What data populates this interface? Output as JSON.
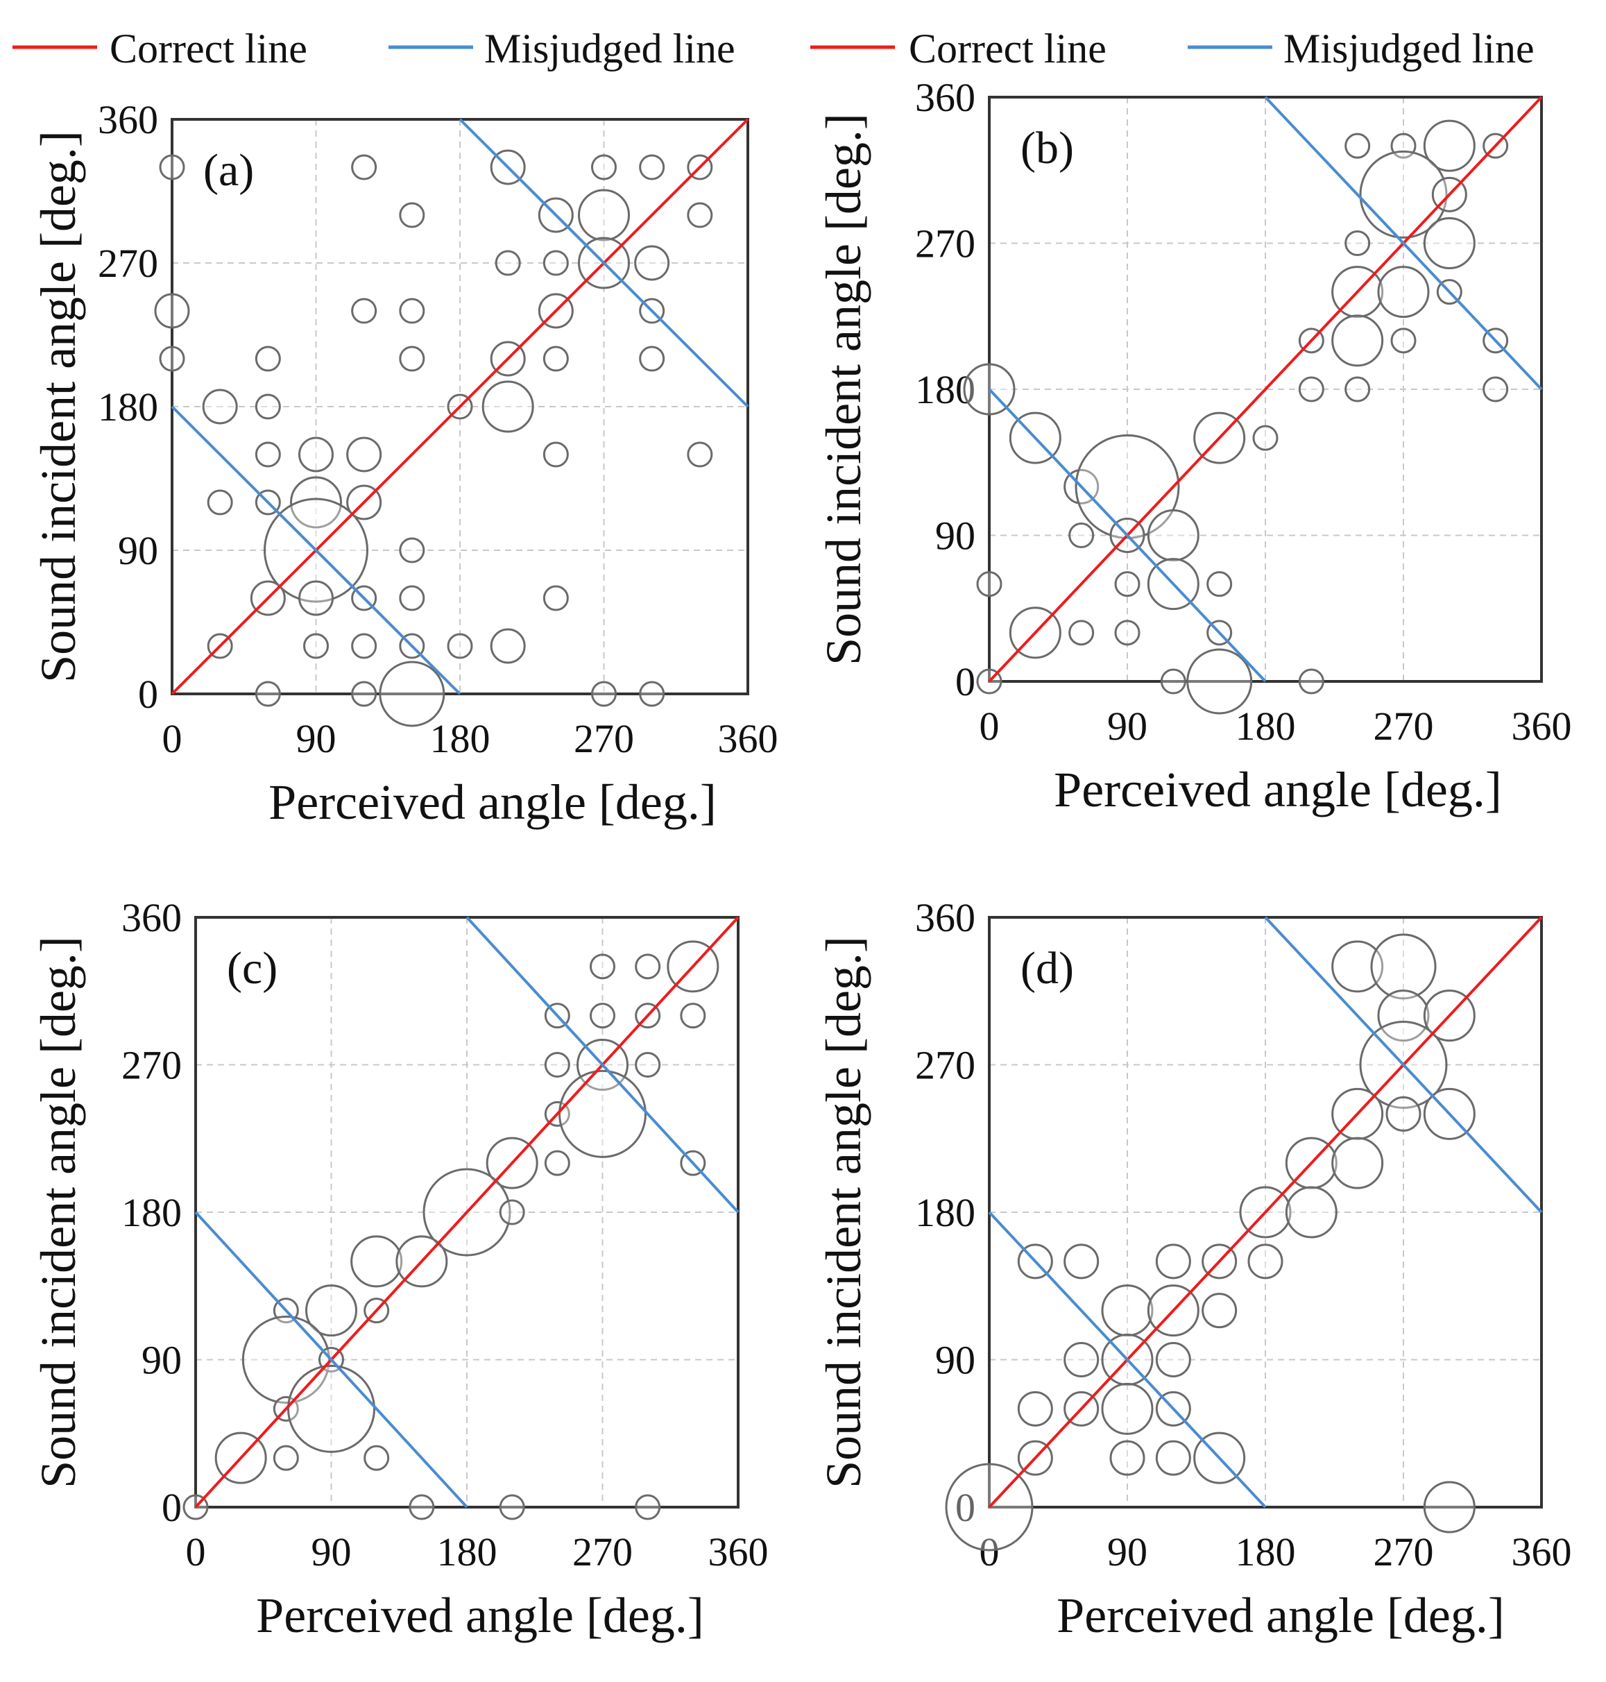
{
  "legend": [
    {
      "label": "Correct line",
      "color": "#ee1c1c"
    },
    {
      "label": "Misjudged line",
      "color": "#4a8ccf"
    },
    {
      "label": "Correct line",
      "color": "#ee1c1c"
    },
    {
      "label": "Misjudged line",
      "color": "#4a8ccf"
    }
  ],
  "chart_data": [
    {
      "type": "scatter",
      "panel_label": "(a)",
      "xlabel": "Perceived angle [deg.]",
      "ylabel": "Sound incident angle [deg.]",
      "xlim": [
        0,
        360
      ],
      "ylim": [
        0,
        360
      ],
      "xticks": [
        "0",
        "90",
        "180",
        "270",
        "360"
      ],
      "yticks": [
        "0",
        "90",
        "180",
        "270",
        "360"
      ],
      "series": [
        {
          "name": "Correct line",
          "x": [
            0,
            360
          ],
          "y": [
            0,
            360
          ]
        },
        {
          "name": "Misjudged line",
          "segments": [
            [
              [
                0,
                180
              ],
              [
                180,
                0
              ]
            ],
            [
              [
                180,
                360
              ],
              [
                360,
                180
              ]
            ]
          ]
        }
      ],
      "points": [
        {
          "x": 0,
          "y": 330,
          "size": 1
        },
        {
          "x": 0,
          "y": 240,
          "size": 2
        },
        {
          "x": 0,
          "y": 210,
          "size": 1
        },
        {
          "x": 60,
          "y": 0,
          "size": 1
        },
        {
          "x": 120,
          "y": 0,
          "size": 1
        },
        {
          "x": 150,
          "y": 0,
          "size": 4
        },
        {
          "x": 270,
          "y": 0,
          "size": 1
        },
        {
          "x": 300,
          "y": 0,
          "size": 1
        },
        {
          "x": 120,
          "y": 330,
          "size": 1
        },
        {
          "x": 210,
          "y": 330,
          "size": 2
        },
        {
          "x": 270,
          "y": 330,
          "size": 1
        },
        {
          "x": 300,
          "y": 330,
          "size": 1
        },
        {
          "x": 330,
          "y": 330,
          "size": 1
        },
        {
          "x": 150,
          "y": 300,
          "size": 1
        },
        {
          "x": 240,
          "y": 300,
          "size": 2
        },
        {
          "x": 270,
          "y": 300,
          "size": 3
        },
        {
          "x": 330,
          "y": 300,
          "size": 1
        },
        {
          "x": 210,
          "y": 270,
          "size": 1
        },
        {
          "x": 240,
          "y": 270,
          "size": 1
        },
        {
          "x": 270,
          "y": 270,
          "size": 3
        },
        {
          "x": 300,
          "y": 270,
          "size": 2
        },
        {
          "x": 120,
          "y": 240,
          "size": 1
        },
        {
          "x": 150,
          "y": 240,
          "size": 1
        },
        {
          "x": 240,
          "y": 240,
          "size": 2
        },
        {
          "x": 300,
          "y": 240,
          "size": 1
        },
        {
          "x": 60,
          "y": 210,
          "size": 1
        },
        {
          "x": 150,
          "y": 210,
          "size": 1
        },
        {
          "x": 210,
          "y": 210,
          "size": 2
        },
        {
          "x": 240,
          "y": 210,
          "size": 1
        },
        {
          "x": 300,
          "y": 210,
          "size": 1
        },
        {
          "x": 30,
          "y": 180,
          "size": 2
        },
        {
          "x": 60,
          "y": 180,
          "size": 1
        },
        {
          "x": 180,
          "y": 180,
          "size": 1
        },
        {
          "x": 210,
          "y": 180,
          "size": 3
        },
        {
          "x": 60,
          "y": 150,
          "size": 1
        },
        {
          "x": 90,
          "y": 150,
          "size": 2
        },
        {
          "x": 120,
          "y": 150,
          "size": 2
        },
        {
          "x": 240,
          "y": 150,
          "size": 1
        },
        {
          "x": 330,
          "y": 150,
          "size": 1
        },
        {
          "x": 30,
          "y": 120,
          "size": 1
        },
        {
          "x": 60,
          "y": 120,
          "size": 1
        },
        {
          "x": 90,
          "y": 120,
          "size": 3
        },
        {
          "x": 120,
          "y": 120,
          "size": 2
        },
        {
          "x": 90,
          "y": 90,
          "size": 6
        },
        {
          "x": 150,
          "y": 90,
          "size": 1
        },
        {
          "x": 60,
          "y": 60,
          "size": 2
        },
        {
          "x": 90,
          "y": 60,
          "size": 2
        },
        {
          "x": 120,
          "y": 60,
          "size": 1
        },
        {
          "x": 150,
          "y": 60,
          "size": 1
        },
        {
          "x": 240,
          "y": 60,
          "size": 1
        },
        {
          "x": 30,
          "y": 30,
          "size": 1
        },
        {
          "x": 90,
          "y": 30,
          "size": 1
        },
        {
          "x": 120,
          "y": 30,
          "size": 1
        },
        {
          "x": 150,
          "y": 30,
          "size": 1
        },
        {
          "x": 180,
          "y": 30,
          "size": 1
        },
        {
          "x": 210,
          "y": 30,
          "size": 2
        }
      ]
    },
    {
      "type": "scatter",
      "panel_label": "(b)",
      "xlabel": "Perceived angle [deg.]",
      "ylabel": "Sound incident angle [deg.]",
      "xlim": [
        0,
        360
      ],
      "ylim": [
        0,
        360
      ],
      "xticks": [
        "0",
        "90",
        "180",
        "270",
        "360"
      ],
      "yticks": [
        "0",
        "90",
        "180",
        "270",
        "360"
      ],
      "series": [
        {
          "name": "Correct line",
          "x": [
            0,
            360
          ],
          "y": [
            0,
            360
          ]
        },
        {
          "name": "Misjudged line",
          "segments": [
            [
              [
                0,
                180
              ],
              [
                180,
                0
              ]
            ],
            [
              [
                180,
                360
              ],
              [
                360,
                180
              ]
            ]
          ]
        }
      ],
      "points": [
        {
          "x": 240,
          "y": 330,
          "size": 1
        },
        {
          "x": 270,
          "y": 330,
          "size": 1
        },
        {
          "x": 300,
          "y": 330,
          "size": 3
        },
        {
          "x": 330,
          "y": 330,
          "size": 1
        },
        {
          "x": 270,
          "y": 300,
          "size": 5
        },
        {
          "x": 300,
          "y": 300,
          "size": 2
        },
        {
          "x": 240,
          "y": 270,
          "size": 1
        },
        {
          "x": 300,
          "y": 270,
          "size": 3
        },
        {
          "x": 240,
          "y": 240,
          "size": 3
        },
        {
          "x": 270,
          "y": 240,
          "size": 3
        },
        {
          "x": 300,
          "y": 240,
          "size": 1
        },
        {
          "x": 210,
          "y": 210,
          "size": 1
        },
        {
          "x": 240,
          "y": 210,
          "size": 3
        },
        {
          "x": 270,
          "y": 210,
          "size": 1
        },
        {
          "x": 330,
          "y": 210,
          "size": 1
        },
        {
          "x": 210,
          "y": 180,
          "size": 1
        },
        {
          "x": 240,
          "y": 180,
          "size": 1
        },
        {
          "x": 330,
          "y": 180,
          "size": 1
        },
        {
          "x": 0,
          "y": 180,
          "size": 3
        },
        {
          "x": 30,
          "y": 150,
          "size": 3
        },
        {
          "x": 150,
          "y": 150,
          "size": 3
        },
        {
          "x": 180,
          "y": 150,
          "size": 1
        },
        {
          "x": 60,
          "y": 120,
          "size": 2
        },
        {
          "x": 90,
          "y": 120,
          "size": 6
        },
        {
          "x": 60,
          "y": 90,
          "size": 1
        },
        {
          "x": 90,
          "y": 90,
          "size": 2
        },
        {
          "x": 120,
          "y": 90,
          "size": 3
        },
        {
          "x": 90,
          "y": 60,
          "size": 1
        },
        {
          "x": 120,
          "y": 60,
          "size": 3
        },
        {
          "x": 150,
          "y": 60,
          "size": 1
        },
        {
          "x": 0,
          "y": 60,
          "size": 1
        },
        {
          "x": 30,
          "y": 30,
          "size": 3
        },
        {
          "x": 60,
          "y": 30,
          "size": 1
        },
        {
          "x": 90,
          "y": 30,
          "size": 1
        },
        {
          "x": 150,
          "y": 30,
          "size": 1
        },
        {
          "x": 0,
          "y": 0,
          "size": 1
        },
        {
          "x": 120,
          "y": 0,
          "size": 1
        },
        {
          "x": 150,
          "y": 0,
          "size": 4
        },
        {
          "x": 210,
          "y": 0,
          "size": 1
        }
      ]
    },
    {
      "type": "scatter",
      "panel_label": "(c)",
      "xlabel": "Perceived angle [deg.]",
      "ylabel": "Sound incident angle [deg.]",
      "xlim": [
        0,
        360
      ],
      "ylim": [
        0,
        360
      ],
      "xticks": [
        "0",
        "90",
        "180",
        "270",
        "360"
      ],
      "yticks": [
        "0",
        "90",
        "180",
        "270",
        "360"
      ],
      "series": [
        {
          "name": "Correct line",
          "x": [
            0,
            360
          ],
          "y": [
            0,
            360
          ]
        },
        {
          "name": "Misjudged line",
          "segments": [
            [
              [
                0,
                180
              ],
              [
                180,
                0
              ]
            ],
            [
              [
                180,
                360
              ],
              [
                360,
                180
              ]
            ]
          ]
        }
      ],
      "points": [
        {
          "x": 270,
          "y": 330,
          "size": 1
        },
        {
          "x": 300,
          "y": 330,
          "size": 1
        },
        {
          "x": 330,
          "y": 330,
          "size": 3
        },
        {
          "x": 240,
          "y": 300,
          "size": 1
        },
        {
          "x": 270,
          "y": 300,
          "size": 1
        },
        {
          "x": 300,
          "y": 300,
          "size": 1
        },
        {
          "x": 330,
          "y": 300,
          "size": 1
        },
        {
          "x": 240,
          "y": 270,
          "size": 1
        },
        {
          "x": 270,
          "y": 270,
          "size": 3
        },
        {
          "x": 300,
          "y": 270,
          "size": 1
        },
        {
          "x": 240,
          "y": 240,
          "size": 1
        },
        {
          "x": 270,
          "y": 240,
          "size": 5
        },
        {
          "x": 210,
          "y": 210,
          "size": 3
        },
        {
          "x": 240,
          "y": 210,
          "size": 1
        },
        {
          "x": 330,
          "y": 210,
          "size": 1
        },
        {
          "x": 180,
          "y": 180,
          "size": 5
        },
        {
          "x": 210,
          "y": 180,
          "size": 1
        },
        {
          "x": 120,
          "y": 150,
          "size": 3
        },
        {
          "x": 150,
          "y": 150,
          "size": 3
        },
        {
          "x": 60,
          "y": 120,
          "size": 1
        },
        {
          "x": 90,
          "y": 120,
          "size": 3
        },
        {
          "x": 120,
          "y": 120,
          "size": 1
        },
        {
          "x": 60,
          "y": 90,
          "size": 5
        },
        {
          "x": 90,
          "y": 90,
          "size": 1
        },
        {
          "x": 60,
          "y": 60,
          "size": 1
        },
        {
          "x": 90,
          "y": 60,
          "size": 5
        },
        {
          "x": 30,
          "y": 30,
          "size": 3
        },
        {
          "x": 60,
          "y": 30,
          "size": 1
        },
        {
          "x": 120,
          "y": 30,
          "size": 1
        },
        {
          "x": 0,
          "y": 0,
          "size": 1
        },
        {
          "x": 150,
          "y": 0,
          "size": 1
        },
        {
          "x": 210,
          "y": 0,
          "size": 1
        },
        {
          "x": 300,
          "y": 0,
          "size": 1
        }
      ]
    },
    {
      "type": "scatter",
      "panel_label": "(d)",
      "xlabel": "Perceived angle [deg.]",
      "ylabel": "Sound incident angle [deg.]",
      "xlim": [
        0,
        360
      ],
      "ylim": [
        0,
        360
      ],
      "xticks": [
        "0",
        "90",
        "180",
        "270",
        "360"
      ],
      "yticks": [
        "0",
        "90",
        "180",
        "270",
        "360"
      ],
      "series": [
        {
          "name": "Correct line",
          "x": [
            0,
            360
          ],
          "y": [
            0,
            360
          ]
        },
        {
          "name": "Misjudged line",
          "segments": [
            [
              [
                0,
                180
              ],
              [
                180,
                0
              ]
            ],
            [
              [
                180,
                360
              ],
              [
                360,
                180
              ]
            ]
          ]
        }
      ],
      "points": [
        {
          "x": 240,
          "y": 330,
          "size": 3
        },
        {
          "x": 270,
          "y": 330,
          "size": 4
        },
        {
          "x": 270,
          "y": 300,
          "size": 3
        },
        {
          "x": 300,
          "y": 300,
          "size": 3
        },
        {
          "x": 270,
          "y": 270,
          "size": 5
        },
        {
          "x": 240,
          "y": 240,
          "size": 3
        },
        {
          "x": 270,
          "y": 240,
          "size": 2
        },
        {
          "x": 300,
          "y": 240,
          "size": 3
        },
        {
          "x": 210,
          "y": 210,
          "size": 3
        },
        {
          "x": 240,
          "y": 210,
          "size": 3
        },
        {
          "x": 180,
          "y": 180,
          "size": 3
        },
        {
          "x": 210,
          "y": 180,
          "size": 3
        },
        {
          "x": 30,
          "y": 150,
          "size": 2
        },
        {
          "x": 60,
          "y": 150,
          "size": 2
        },
        {
          "x": 120,
          "y": 150,
          "size": 2
        },
        {
          "x": 150,
          "y": 150,
          "size": 2
        },
        {
          "x": 180,
          "y": 150,
          "size": 2
        },
        {
          "x": 90,
          "y": 120,
          "size": 3
        },
        {
          "x": 120,
          "y": 120,
          "size": 3
        },
        {
          "x": 150,
          "y": 120,
          "size": 2
        },
        {
          "x": 60,
          "y": 90,
          "size": 2
        },
        {
          "x": 90,
          "y": 90,
          "size": 3
        },
        {
          "x": 120,
          "y": 90,
          "size": 2
        },
        {
          "x": 30,
          "y": 60,
          "size": 2
        },
        {
          "x": 60,
          "y": 60,
          "size": 2
        },
        {
          "x": 90,
          "y": 60,
          "size": 3
        },
        {
          "x": 120,
          "y": 60,
          "size": 2
        },
        {
          "x": 30,
          "y": 30,
          "size": 2
        },
        {
          "x": 90,
          "y": 30,
          "size": 2
        },
        {
          "x": 120,
          "y": 30,
          "size": 2
        },
        {
          "x": 150,
          "y": 30,
          "size": 3
        },
        {
          "x": 0,
          "y": 0,
          "size": 5
        },
        {
          "x": 300,
          "y": 0,
          "size": 3
        }
      ]
    }
  ]
}
